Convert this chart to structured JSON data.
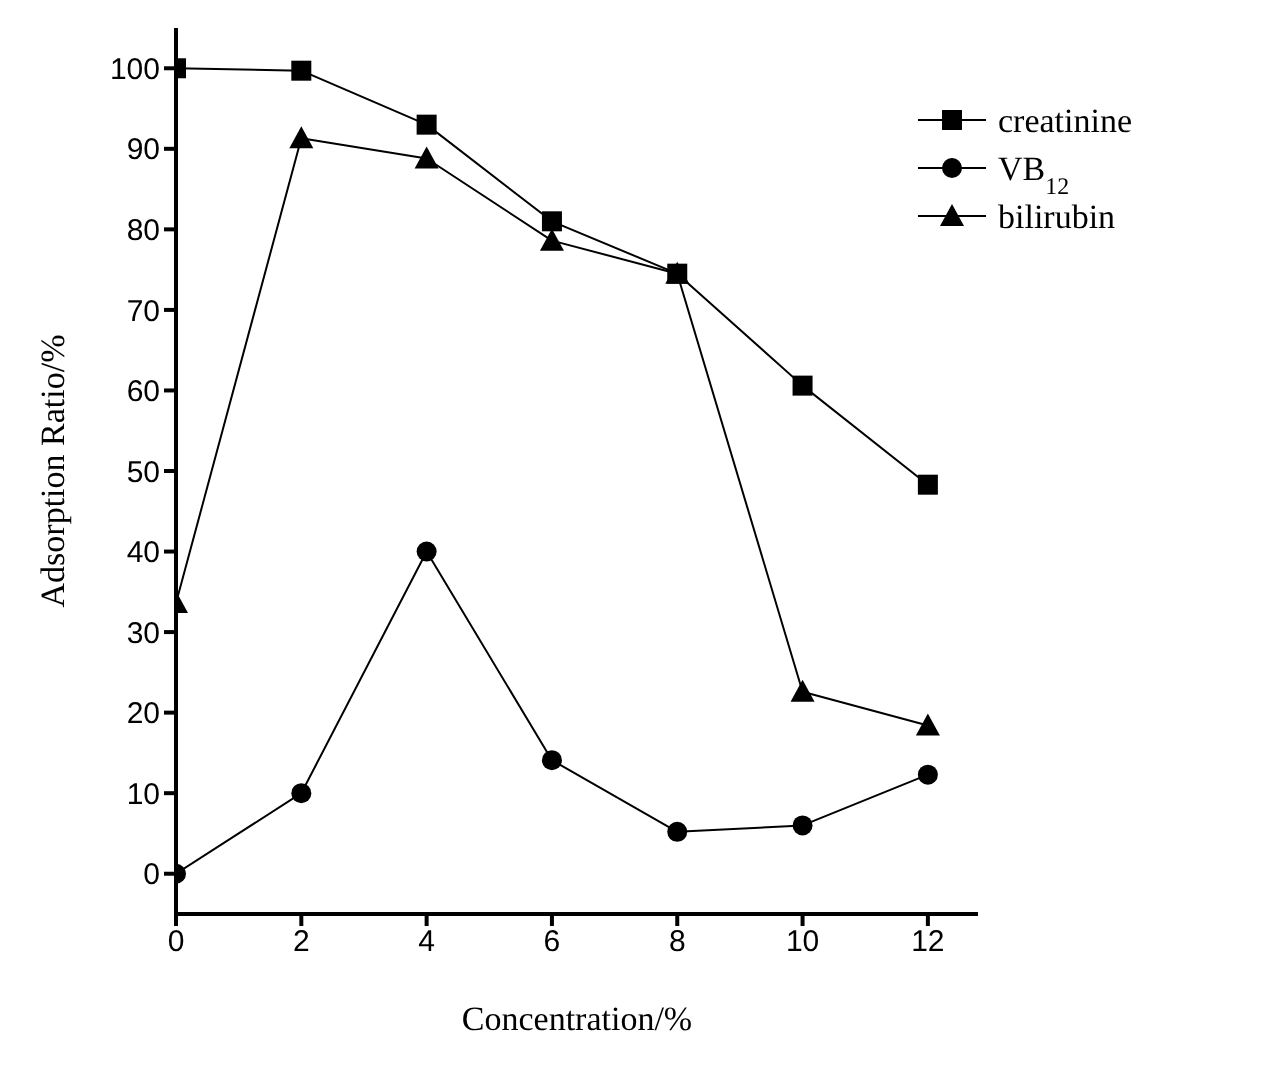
{
  "chart_data": {
    "type": "line",
    "xlabel": "Concentration/%",
    "ylabel": "Adsorption Ratio/%",
    "x": [
      0,
      2,
      4,
      6,
      8,
      10,
      12
    ],
    "series": [
      {
        "name": "creatinine",
        "color": "#000000",
        "marker": "square",
        "values": [
          100,
          99.7,
          93,
          81,
          74.5,
          60.6,
          48.3
        ]
      },
      {
        "name": "VB$_{12}$",
        "color": "#000000",
        "marker": "circle",
        "values": [
          0,
          10,
          40,
          14.1,
          5.2,
          6,
          12.3
        ]
      },
      {
        "name": "bilirubin",
        "color": "#000000",
        "marker": "triangle",
        "values": [
          33.6,
          91.3,
          88.8,
          78.6,
          74.5,
          22.6,
          18.4
        ]
      }
    ],
    "xlim": [
      0,
      12.8
    ],
    "xticks": [
      0,
      2,
      4,
      6,
      8,
      10,
      12
    ],
    "ylim": [
      -5,
      105
    ],
    "yticks": [
      0,
      10,
      20,
      30,
      40,
      50,
      60,
      70,
      80,
      90,
      100
    ],
    "grid": false,
    "legend": "top right",
    "line_style": "solid"
  }
}
